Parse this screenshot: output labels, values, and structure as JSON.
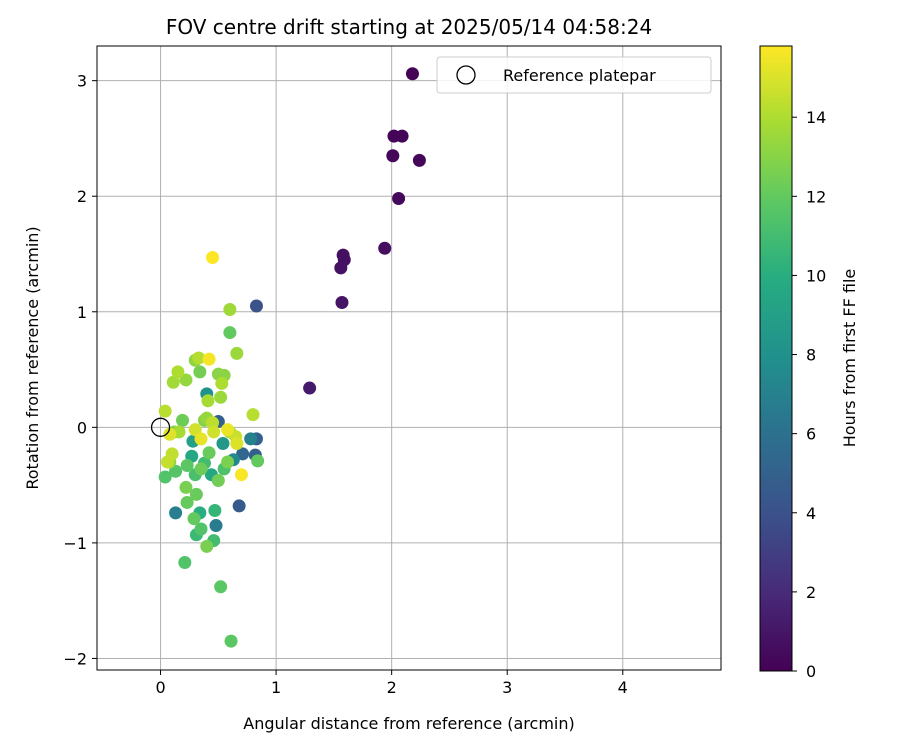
{
  "chart_data": {
    "type": "scatter",
    "title": "FOV centre drift starting at 2025/05/14 04:58:24",
    "xlabel": "Angular distance from reference (arcmin)",
    "ylabel": "Rotation from reference (arcmin)",
    "xlim": [
      -0.55,
      4.85
    ],
    "ylim": [
      -2.1,
      3.3
    ],
    "xticks": [
      0,
      1,
      2,
      3,
      4
    ],
    "yticks": [
      -2,
      -1,
      0,
      1,
      2,
      3
    ],
    "grid": true,
    "legend": {
      "placement": "top-right",
      "entries": [
        "Reference platepar"
      ]
    },
    "reference_point": {
      "label": "Reference platepar",
      "x": 0,
      "y": 0
    },
    "colorbar": {
      "label": "Hours from first FF file",
      "colormap": "viridis",
      "range": [
        0,
        15.8
      ],
      "ticks": [
        0,
        2,
        4,
        6,
        8,
        10,
        12,
        14
      ]
    },
    "points": [
      {
        "x": 2.18,
        "y": 3.06,
        "h": 0.1
      },
      {
        "x": 2.02,
        "y": 2.52,
        "h": 0.2
      },
      {
        "x": 2.09,
        "y": 2.52,
        "h": 0.2
      },
      {
        "x": 2.01,
        "y": 2.35,
        "h": 0.3
      },
      {
        "x": 2.24,
        "y": 2.31,
        "h": 0.3
      },
      {
        "x": 2.06,
        "y": 1.98,
        "h": 0.4
      },
      {
        "x": 1.94,
        "y": 1.55,
        "h": 0.6
      },
      {
        "x": 1.58,
        "y": 1.49,
        "h": 0.7
      },
      {
        "x": 1.59,
        "y": 1.45,
        "h": 0.7
      },
      {
        "x": 1.56,
        "y": 1.38,
        "h": 0.8
      },
      {
        "x": 1.57,
        "y": 1.08,
        "h": 0.9
      },
      {
        "x": 1.29,
        "y": 0.34,
        "h": 1.2
      },
      {
        "x": 0.83,
        "y": 1.05,
        "h": 4.0
      },
      {
        "x": 0.68,
        "y": -0.68,
        "h": 4.5
      },
      {
        "x": 0.82,
        "y": -0.24,
        "h": 4.8
      },
      {
        "x": 0.83,
        "y": -0.1,
        "h": 5.0
      },
      {
        "x": 0.71,
        "y": -0.23,
        "h": 5.3
      },
      {
        "x": 0.5,
        "y": 0.05,
        "h": 5.0
      },
      {
        "x": 0.13,
        "y": -0.74,
        "h": 6.8
      },
      {
        "x": 0.48,
        "y": -0.85,
        "h": 6.7
      },
      {
        "x": 0.78,
        "y": -0.1,
        "h": 7.0
      },
      {
        "x": 0.63,
        "y": -0.28,
        "h": 7.5
      },
      {
        "x": 0.4,
        "y": 0.29,
        "h": 8.0
      },
      {
        "x": 0.54,
        "y": -0.14,
        "h": 8.5
      },
      {
        "x": 0.28,
        "y": -0.12,
        "h": 9.0
      },
      {
        "x": 0.27,
        "y": -0.25,
        "h": 9.5
      },
      {
        "x": 0.44,
        "y": -0.41,
        "h": 9.5
      },
      {
        "x": 0.34,
        "y": -0.74,
        "h": 10.0
      },
      {
        "x": 0.47,
        "y": -0.72,
        "h": 10.5
      },
      {
        "x": 0.31,
        "y": -0.93,
        "h": 10.7
      },
      {
        "x": 0.46,
        "y": -0.98,
        "h": 11.0
      },
      {
        "x": 0.35,
        "y": -0.88,
        "h": 11.5
      },
      {
        "x": 0.21,
        "y": -1.17,
        "h": 11.5
      },
      {
        "x": 0.52,
        "y": -1.38,
        "h": 11.8
      },
      {
        "x": 0.61,
        "y": -1.85,
        "h": 11.8
      },
      {
        "x": 0.3,
        "y": -0.41,
        "h": 11.2
      },
      {
        "x": 0.38,
        "y": -0.31,
        "h": 11.0
      },
      {
        "x": 0.55,
        "y": -0.36,
        "h": 11.3
      },
      {
        "x": 0.04,
        "y": -0.43,
        "h": 11.5
      },
      {
        "x": 0.13,
        "y": -0.38,
        "h": 11.6
      },
      {
        "x": 0.23,
        "y": -0.33,
        "h": 11.8
      },
      {
        "x": 0.6,
        "y": 0.82,
        "h": 12.0
      },
      {
        "x": 0.29,
        "y": -0.79,
        "h": 12.0
      },
      {
        "x": 0.23,
        "y": -0.65,
        "h": 12.1
      },
      {
        "x": 0.31,
        "y": -0.58,
        "h": 12.2
      },
      {
        "x": 0.42,
        "y": -0.22,
        "h": 12.2
      },
      {
        "x": 0.35,
        "y": -0.36,
        "h": 12.3
      },
      {
        "x": 0.5,
        "y": -0.46,
        "h": 12.4
      },
      {
        "x": 0.84,
        "y": -0.29,
        "h": 12.0
      },
      {
        "x": 0.19,
        "y": 0.06,
        "h": 12.3
      },
      {
        "x": 0.34,
        "y": 0.48,
        "h": 12.5
      },
      {
        "x": 0.4,
        "y": -1.03,
        "h": 12.6
      },
      {
        "x": 0.22,
        "y": -0.52,
        "h": 12.6
      },
      {
        "x": 0.58,
        "y": -0.3,
        "h": 12.7
      },
      {
        "x": 0.12,
        "y": -0.04,
        "h": 12.8
      },
      {
        "x": 0.38,
        "y": 0.06,
        "h": 12.9
      },
      {
        "x": 0.5,
        "y": 0.46,
        "h": 13.0
      },
      {
        "x": 0.55,
        "y": 0.45,
        "h": 13.1
      },
      {
        "x": 0.3,
        "y": 0.58,
        "h": 13.2
      },
      {
        "x": 0.22,
        "y": 0.41,
        "h": 13.3
      },
      {
        "x": 0.08,
        "y": -0.3,
        "h": 13.3
      },
      {
        "x": 0.4,
        "y": 0.08,
        "h": 13.4
      },
      {
        "x": 0.52,
        "y": 0.26,
        "h": 13.5
      },
      {
        "x": 0.66,
        "y": 0.64,
        "h": 13.5
      },
      {
        "x": 0.6,
        "y": 1.02,
        "h": 13.6
      },
      {
        "x": 0.11,
        "y": 0.39,
        "h": 13.7
      },
      {
        "x": 0.16,
        "y": -0.04,
        "h": 13.8
      },
      {
        "x": 0.41,
        "y": 0.23,
        "h": 13.8
      },
      {
        "x": 0.6,
        "y": -0.04,
        "h": 13.9
      },
      {
        "x": 0.15,
        "y": 0.48,
        "h": 14.0
      },
      {
        "x": 0.53,
        "y": 0.38,
        "h": 14.0
      },
      {
        "x": 0.33,
        "y": 0.6,
        "h": 14.1
      },
      {
        "x": 0.04,
        "y": 0.14,
        "h": 14.2
      },
      {
        "x": 0.8,
        "y": 0.11,
        "h": 14.2
      },
      {
        "x": 0.45,
        "y": 0.04,
        "h": 14.3
      },
      {
        "x": 0.1,
        "y": -0.23,
        "h": 14.4
      },
      {
        "x": 0.06,
        "y": -0.3,
        "h": 14.5
      },
      {
        "x": 0.65,
        "y": -0.08,
        "h": 14.6
      },
      {
        "x": 0.46,
        "y": -0.04,
        "h": 14.7
      },
      {
        "x": 0.3,
        "y": -0.02,
        "h": 14.8
      },
      {
        "x": 0.66,
        "y": -0.14,
        "h": 15.0
      },
      {
        "x": 0.08,
        "y": -0.06,
        "h": 15.1
      },
      {
        "x": 0.35,
        "y": -0.1,
        "h": 15.3
      },
      {
        "x": 0.58,
        "y": -0.02,
        "h": 15.4
      },
      {
        "x": 0.42,
        "y": 0.59,
        "h": 15.6
      },
      {
        "x": 0.7,
        "y": -0.41,
        "h": 15.7
      },
      {
        "x": 0.45,
        "y": 1.47,
        "h": 15.8
      }
    ]
  }
}
